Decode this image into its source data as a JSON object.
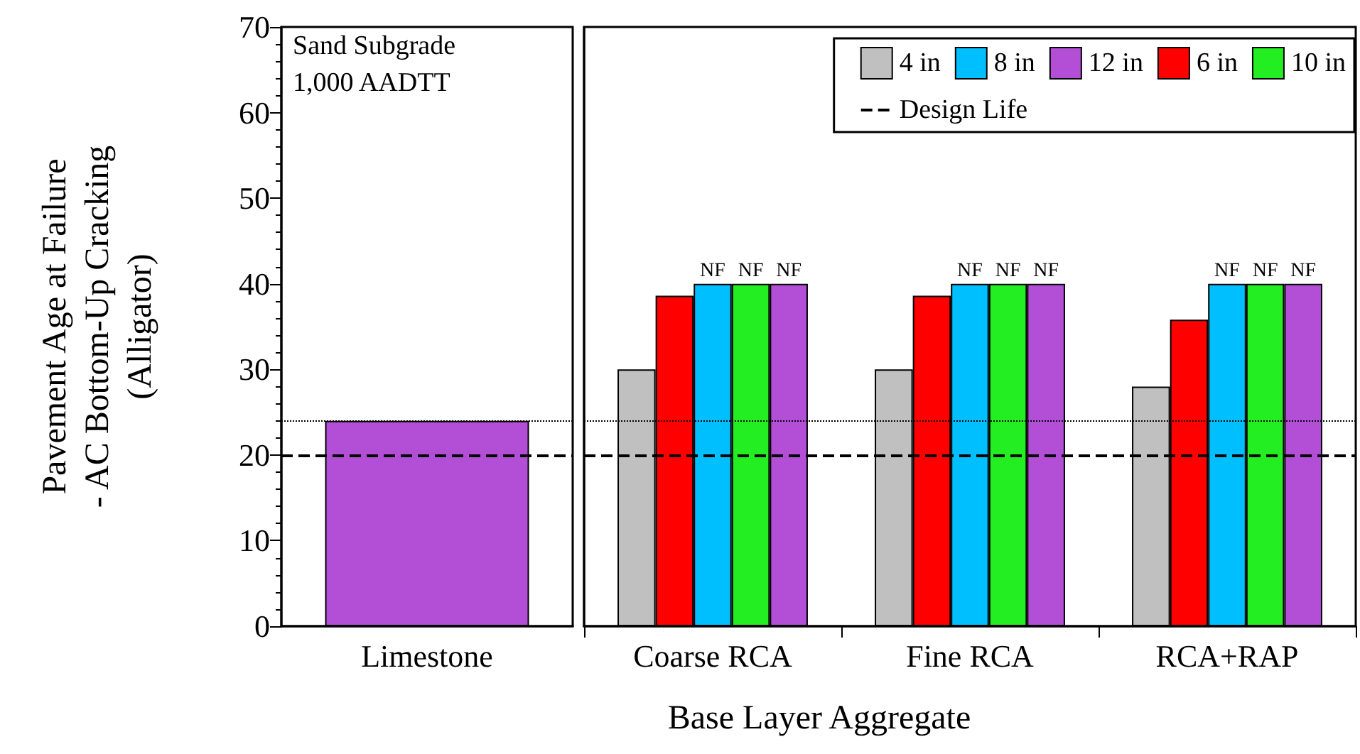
{
  "chart_data": [
    {
      "type": "bar",
      "ylabel": "Pavement Age at Failure\n- AC Bottom-Up Cracking\n(Alligator)",
      "categories": [
        "Limestone"
      ],
      "ylim": [
        0,
        70
      ],
      "yticks": [
        0,
        10,
        20,
        30,
        40,
        50,
        60,
        70
      ],
      "series": [
        {
          "color": "#b34fd6",
          "values": [
            24
          ]
        }
      ],
      "ref_lines": [
        {
          "axis": "y",
          "value": 20,
          "line_style": "dashed",
          "color": "#000000"
        },
        {
          "axis": "y",
          "value": 24,
          "line_style": "dotted",
          "color": "#000000"
        }
      ],
      "annotations": [
        "Sand Subgrade",
        "1,000 AADTT"
      ]
    },
    {
      "type": "bar",
      "xlabel": "Base Layer Aggregate",
      "categories": [
        "Coarse RCA",
        "Fine RCA",
        "RCA+RAP"
      ],
      "ylim": [
        0,
        70
      ],
      "yticks": [
        0,
        10,
        20,
        30,
        40,
        50,
        60,
        70
      ],
      "tick_labels": "x",
      "legend": "top right",
      "series": [
        {
          "name": "4 in",
          "color": "#c0c0c0",
          "values": [
            30,
            30,
            28
          ]
        },
        {
          "name": "6 in",
          "color": "#ff0000",
          "values": [
            38.6,
            38.6,
            35.8
          ]
        },
        {
          "name": "8 in",
          "color": "#00bfff",
          "values": [
            40,
            40,
            40
          ],
          "value_labels": [
            "NF",
            "NF",
            "NF"
          ]
        },
        {
          "name": "10 in",
          "color": "#22ee22",
          "values": [
            40,
            40,
            40
          ],
          "value_labels": [
            "NF",
            "NF",
            "NF"
          ]
        },
        {
          "name": "12 in",
          "color": "#b34fd6",
          "values": [
            40,
            40,
            40
          ],
          "value_labels": [
            "NF",
            "NF",
            "NF"
          ]
        }
      ],
      "ref_lines": [
        {
          "axis": "y",
          "value": 20,
          "line_style": "dashed",
          "color": "#000000",
          "label": "Design Life"
        },
        {
          "axis": "y",
          "value": 24,
          "line_style": "dotted",
          "color": "#000000"
        }
      ]
    }
  ]
}
